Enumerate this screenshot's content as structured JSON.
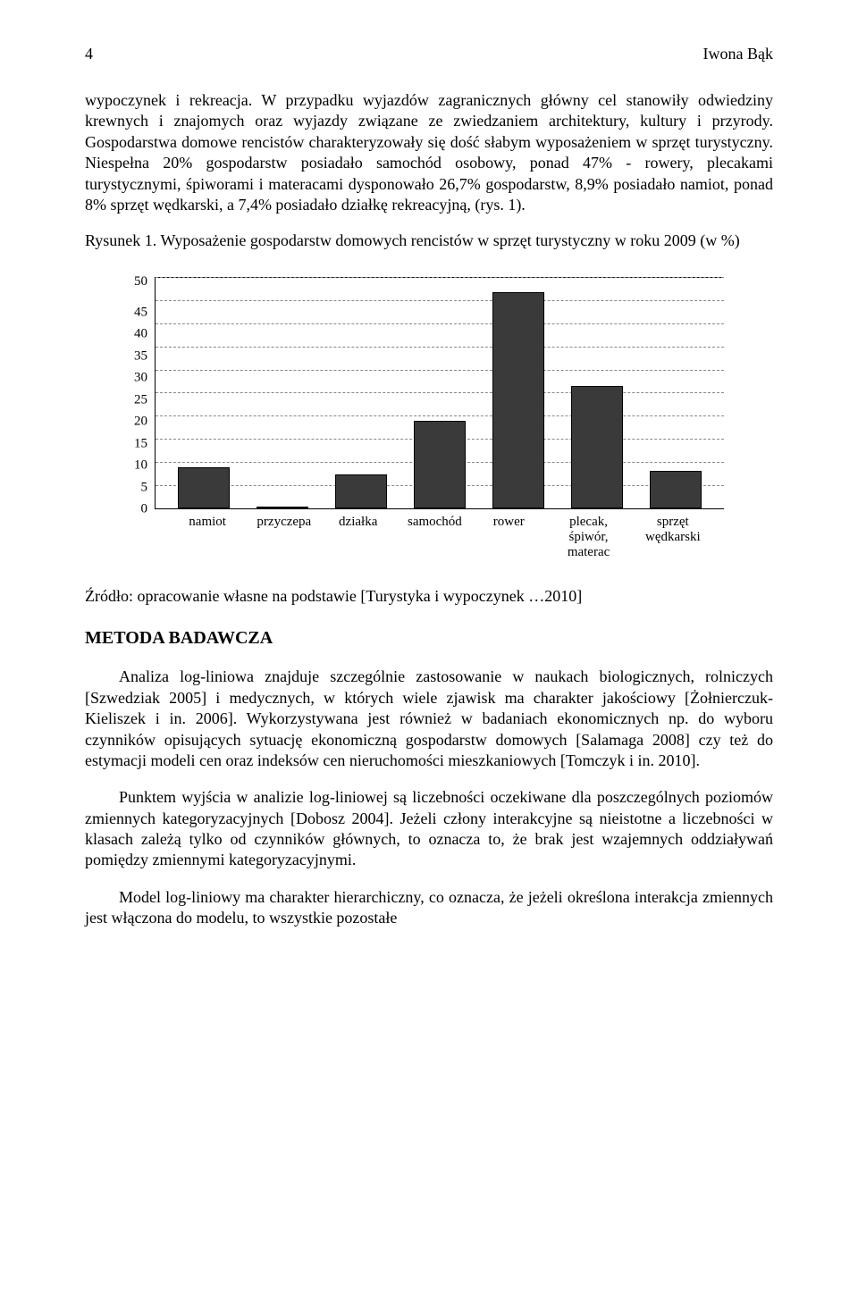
{
  "header": {
    "page_number": "4",
    "author": "Iwona Bąk"
  },
  "paragraphs": {
    "p1": "wypoczynek i rekreacja. W przypadku wyjazdów zagranicznych główny cel stanowiły odwiedziny krewnych i znajomych oraz wyjazdy związane ze zwiedzaniem architektury, kultury i przyrody. Gospodarstwa domowe rencistów charakteryzowały się dość słabym wyposażeniem w sprzęt turystyczny. Niespełna 20% gospodarstw posiadało samochód osobowy, ponad 47% - rowery, plecakami turystycznymi, śpiworami i materacami dysponowało 26,7% gospodarstw, 8,9% posiadało namiot, ponad 8% sprzęt wędkarski, a 7,4% posiadało działkę rekreacyjną, (rys. 1).",
    "figure_caption": "Rysunek 1. Wyposażenie gospodarstw domowych rencistów w sprzęt turystyczny w roku 2009 (w %)",
    "source": "Źródło: opracowanie własne na podstawie [Turystyka i wypoczynek …2010]",
    "section_heading": "METODA BADAWCZA",
    "p2": "Analiza log-liniowa znajduje szczególnie zastosowanie w naukach biologicznych, rolniczych [Szwedziak 2005] i medycznych, w których wiele zjawisk ma charakter jakościowy [Żołnierczuk-Kieliszek i in. 2006]. Wykorzystywana jest również w badaniach ekonomicznych np. do wyboru czynników opisujących sytuację ekonomiczną gospodarstw domowych [Salamaga 2008] czy też do estymacji modeli cen oraz indeksów cen nieruchomości mieszkaniowych [Tomczyk i in. 2010].",
    "p3": "Punktem wyjścia w analizie log-liniowej są liczebności oczekiwane dla poszczególnych poziomów zmiennych kategoryzacyjnych [Dobosz 2004]. Jeżeli człony interakcyjne są nieistotne a liczebności w klasach zależą tylko od czynników głównych, to oznacza to, że brak jest wzajemnych oddziaływań pomiędzy zmiennymi kategoryzacyjnymi.",
    "p4": "Model log-liniowy ma charakter hierarchiczny, co oznacza, że jeżeli określona interakcja zmiennych jest włączona do modelu, to wszystkie pozostałe"
  },
  "chart": {
    "type": "bar",
    "ylim_max": 50,
    "ytick_step": 5,
    "yticks": [
      "50",
      "45",
      "40",
      "35",
      "30",
      "25",
      "20",
      "15",
      "10",
      "5",
      "0"
    ],
    "categories": [
      "namiot",
      "przyczepa",
      "działka",
      "samochód",
      "rower",
      "plecak, śpiwór, materac",
      "sprzęt wędkarski"
    ],
    "values": [
      8.9,
      0.5,
      7.4,
      19.0,
      47.0,
      26.7,
      8.2
    ],
    "bar_color": "#3a3a3a",
    "grid_color": "#888888",
    "background_color": "#ffffff"
  }
}
